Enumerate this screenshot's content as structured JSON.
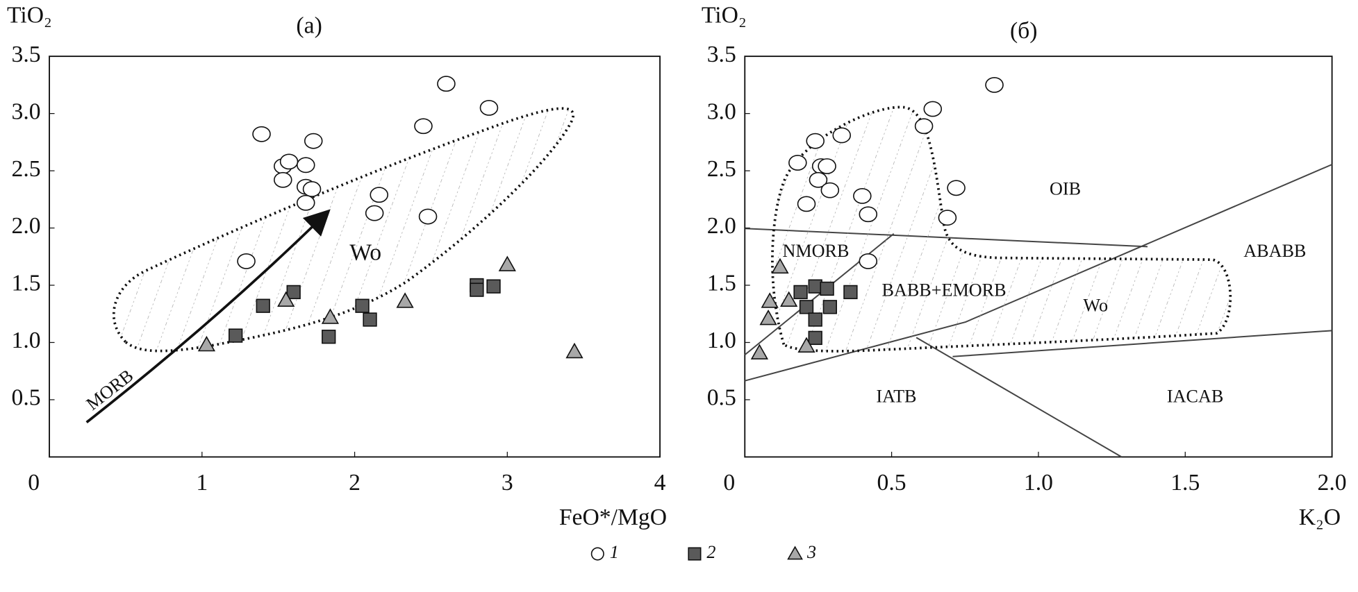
{
  "chart_data": [
    {
      "type": "scatter",
      "title": "(a)",
      "ylabel": "TiO₂",
      "xlabel": "FeO*/MgO",
      "xlim": [
        0,
        4
      ],
      "ylim": [
        0,
        3.5
      ],
      "xticks": [
        0,
        1,
        2,
        3,
        4
      ],
      "yticks": [
        0.5,
        {
          "value": 1,
          "label": "1.0"
        },
        1.5,
        {
          "value": 2,
          "label": "2.0"
        },
        2.5,
        {
          "value": 3,
          "label": "3.0"
        },
        3.5
      ],
      "series": [
        {
          "name": "1",
          "marker": "circle",
          "color": "#ffffff",
          "x": [
            1.29,
            1.39,
            1.53,
            1.53,
            1.57,
            1.68,
            1.73,
            1.68,
            1.72,
            1.68,
            2.16,
            2.13,
            2.45,
            2.48,
            2.6,
            2.88
          ],
          "values": [
            1.71,
            2.82,
            2.54,
            2.42,
            2.58,
            2.55,
            2.76,
            2.36,
            2.34,
            2.22,
            2.29,
            2.13,
            2.89,
            2.1,
            3.26,
            3.05
          ]
        },
        {
          "name": "2",
          "marker": "square",
          "color": "#5a5a5a",
          "x": [
            1.22,
            1.4,
            1.6,
            1.83,
            2.05,
            2.1,
            2.8,
            2.8,
            2.91
          ],
          "values": [
            1.06,
            1.32,
            1.44,
            1.05,
            1.32,
            1.2,
            1.5,
            1.46,
            1.49
          ]
        },
        {
          "name": "3",
          "marker": "triangle",
          "color": "#a8a8a8",
          "x": [
            1.03,
            1.55,
            1.84,
            2.33,
            3.0,
            3.44
          ],
          "values": [
            0.98,
            1.37,
            1.22,
            1.36,
            1.68,
            0.92
          ]
        }
      ],
      "annotations": [
        "Wo",
        "MORB"
      ]
    },
    {
      "type": "scatter",
      "title": "(б)",
      "ylabel": "TiO₂",
      "xlabel": "K₂O",
      "xlim": [
        0,
        2
      ],
      "ylim": [
        0,
        3.5
      ],
      "xticks": [
        0,
        0.5,
        {
          "value": 1,
          "label": "1.0"
        },
        1.5,
        {
          "value": 2,
          "label": "2.0"
        }
      ],
      "yticks": [
        0.5,
        {
          "value": 1,
          "label": "1.0"
        },
        1.5,
        {
          "value": 2,
          "label": "2.0"
        },
        2.5,
        {
          "value": 3,
          "label": "3.0"
        },
        3.5
      ],
      "series": [
        {
          "marker": "circle",
          "color": "#ffffff",
          "x": [
            0.85,
            0.64,
            0.61,
            0.33,
            0.24,
            0.18,
            0.26,
            0.28,
            0.25,
            0.29,
            0.4,
            0.72,
            0.21,
            0.42,
            0.69,
            0.42
          ],
          "values": [
            3.25,
            3.04,
            2.89,
            2.81,
            2.76,
            2.57,
            2.54,
            2.54,
            2.42,
            2.33,
            2.28,
            2.35,
            2.21,
            2.12,
            2.09,
            1.71
          ]
        },
        {
          "marker": "square",
          "color": "#5a5a5a",
          "x": [
            0.19,
            0.24,
            0.28,
            0.36,
            0.21,
            0.29,
            0.24,
            0.24
          ],
          "values": [
            1.44,
            1.49,
            1.47,
            1.44,
            1.31,
            1.31,
            1.2,
            1.04
          ]
        },
        {
          "marker": "triangle",
          "color": "#a8a8a8",
          "x": [
            0.12,
            0.085,
            0.15,
            0.08,
            0.21,
            0.05
          ],
          "values": [
            1.66,
            1.36,
            1.37,
            1.21,
            0.97,
            0.91
          ]
        }
      ],
      "annotations": [
        "OIB",
        "NMORB",
        "BABB+EMORB",
        "Wo",
        "ABABB",
        "IATB",
        "IACAB"
      ]
    }
  ]
}
